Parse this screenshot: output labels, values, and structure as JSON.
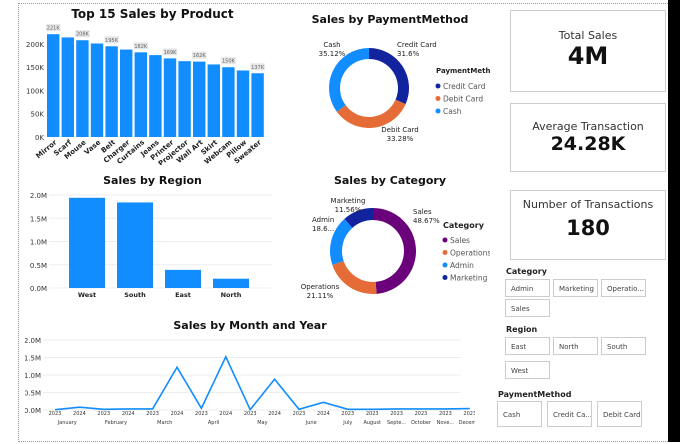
{
  "products": {
    "title": "Top 15 Sales by Product",
    "yticks": [
      "0K",
      "50K",
      "100K",
      "150K",
      "200K"
    ],
    "chart_data": {
      "type": "bar",
      "categories": [
        "Mirror",
        "Scarf",
        "Mouse",
        "Vase",
        "Belt",
        "Charger",
        "Curtains",
        "Jeans",
        "Printer",
        "Projector",
        "Wall Art",
        "Skirt",
        "Webcam",
        "Pillow",
        "Sweater"
      ],
      "values": [
        221,
        214,
        208,
        201,
        195,
        188,
        182,
        176,
        169,
        163,
        162,
        156,
        150,
        143,
        137
      ],
      "unit": "K",
      "ylim": [
        0,
        230
      ],
      "data_labels": {
        "Mirror": "221K",
        "Mouse": "208K",
        "Belt": "195K",
        "Curtains": "182K",
        "Printer": "169K",
        "Wall Art": "162K",
        "Webcam": "150K",
        "Sweater": "137K"
      }
    }
  },
  "payment": {
    "title": "Sales by PaymentMethod",
    "legend_title": "PaymentMethod",
    "chart_data": {
      "type": "pie",
      "labels": [
        "Credit Card",
        "Debit Card",
        "Cash"
      ],
      "values": [
        31.6,
        33.28,
        35.12
      ],
      "colors": [
        "#12239e",
        "#e66c37",
        "#118dff"
      ],
      "pct_labels": [
        "31.6%",
        "33.28%",
        "35.12%"
      ]
    }
  },
  "region": {
    "title": "Sales by Region",
    "yticks": [
      "0.0M",
      "0.5M",
      "1.0M",
      "1.5M",
      "2.0M"
    ],
    "chart_data": {
      "type": "bar",
      "categories": [
        "West",
        "South",
        "East",
        "North"
      ],
      "values": [
        1.94,
        1.84,
        0.39,
        0.2
      ],
      "unit": "M",
      "ylim": [
        0,
        2.0
      ]
    }
  },
  "category": {
    "title": "Sales by Category",
    "legend_title": "Category",
    "chart_data": {
      "type": "pie",
      "labels": [
        "Sales",
        "Operations",
        "Admin",
        "Marketing"
      ],
      "values": [
        48.67,
        21.11,
        18.66,
        11.56
      ],
      "colors": [
        "#6b007b",
        "#e66c37",
        "#118dff",
        "#12239e"
      ],
      "pct_labels": [
        "48.67%",
        "21.11%",
        "18.6...",
        "11.56%"
      ]
    }
  },
  "monthly": {
    "title": "Sales by Month and Year",
    "yticks": [
      "0.0M",
      "0.5M",
      "1.0M",
      "1.5M",
      "2.0M"
    ],
    "chart_data": {
      "type": "line",
      "months": [
        "January",
        "February",
        "March",
        "April",
        "May",
        "June",
        "July",
        "August",
        "Septe...",
        "October",
        "Nove...",
        "Decem..."
      ],
      "x": [
        "2023",
        "2024",
        "2023",
        "2024",
        "2023",
        "2024",
        "2023",
        "2024",
        "2023",
        "2024",
        "2023",
        "2024",
        "2023",
        "2023",
        "2023",
        "2023",
        "2023",
        "2023"
      ],
      "month_index": [
        0,
        0,
        1,
        1,
        2,
        2,
        3,
        3,
        4,
        4,
        5,
        5,
        6,
        7,
        8,
        9,
        10,
        11
      ],
      "values": [
        0.01,
        0.08,
        0.02,
        0.03,
        0.03,
        1.22,
        0.05,
        1.52,
        0.01,
        0.88,
        0.02,
        0.22,
        0.02,
        0.02,
        0.03,
        0.03,
        0.03,
        0.04
      ],
      "ylim": [
        0,
        2.0
      ],
      "color": "#118dff"
    }
  },
  "kpis": [
    {
      "label": "Total Sales",
      "value": "4M"
    },
    {
      "label": "Average Transaction",
      "value": "24.28K"
    },
    {
      "label": "Number of Transactions",
      "value": "180"
    }
  ],
  "slicers": {
    "category": {
      "title": "Category",
      "items": [
        "Admin",
        "Marketing",
        "Operatio...",
        "Sales"
      ]
    },
    "region": {
      "title": "Region",
      "items": [
        "East",
        "North",
        "South",
        "West"
      ]
    },
    "payment": {
      "title": "PaymentMethod",
      "items": [
        "Cash",
        "Credit Ca...",
        "Debit Card"
      ]
    }
  }
}
